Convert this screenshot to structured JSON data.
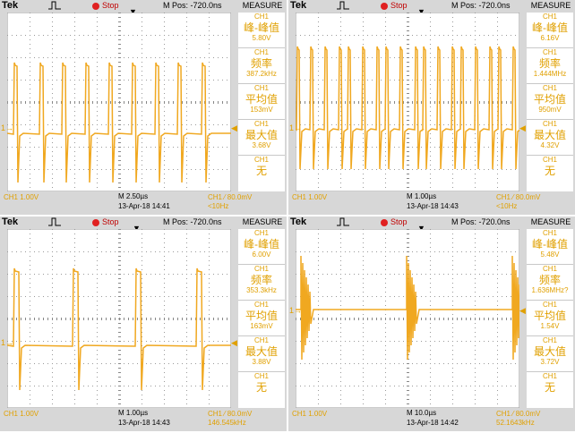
{
  "common": {
    "brand": "Tek",
    "status": "Stop",
    "mpos": "M Pos: -720.0ns",
    "measure_title": "MEASURE",
    "ch_label": "CH1",
    "ground_marker": "1→",
    "trace_color": "#f0a820",
    "label_color": "#e0a000"
  },
  "scopes": [
    {
      "id": "top-left",
      "ch_scale": "CH1  1.00V",
      "timebase": "M 2.50µs",
      "timestamp": "13-Apr-18 14:41",
      "trigger": "CH1 ⁄ 80.0mV",
      "trig_freq": "<10Hz",
      "measurements": [
        {
          "ch": "CH1",
          "label": "峰-峰值",
          "value": "5.80V"
        },
        {
          "ch": "CH1",
          "label": "频率",
          "value": "387.2kHz"
        },
        {
          "ch": "CH1",
          "label": "平均值",
          "value": "153mV"
        },
        {
          "ch": "CH1",
          "label": "最大值",
          "value": "3.68V"
        },
        {
          "ch": "CH1",
          "label": "无",
          "value": ""
        }
      ]
    },
    {
      "id": "top-right",
      "ch_scale": "CH1  1.00V",
      "timebase": "M 1.00µs",
      "timestamp": "13-Apr-18 14:43",
      "trigger": "CH1 ⁄ 80.0mV",
      "trig_freq": "<10Hz",
      "measurements": [
        {
          "ch": "CH1",
          "label": "峰-峰值",
          "value": "6.16V"
        },
        {
          "ch": "CH1",
          "label": "频率",
          "value": "1.444MHz"
        },
        {
          "ch": "CH1",
          "label": "平均值",
          "value": "950mV"
        },
        {
          "ch": "CH1",
          "label": "最大值",
          "value": "4.32V"
        },
        {
          "ch": "CH1",
          "label": "无",
          "value": ""
        }
      ]
    },
    {
      "id": "bottom-left",
      "ch_scale": "CH1  1.00V",
      "timebase": "M 1.00µs",
      "timestamp": "13-Apr-18 14:43",
      "trigger": "CH1 ⁄ 80.0mV",
      "trig_freq": "146.545kHz",
      "measurements": [
        {
          "ch": "CH1",
          "label": "峰-峰值",
          "value": "6.00V"
        },
        {
          "ch": "CH1",
          "label": "频率",
          "value": "353.3kHz"
        },
        {
          "ch": "CH1",
          "label": "平均值",
          "value": "163mV"
        },
        {
          "ch": "CH1",
          "label": "最大值",
          "value": "3.88V"
        },
        {
          "ch": "CH1",
          "label": "无",
          "value": ""
        }
      ]
    },
    {
      "id": "bottom-right",
      "ch_scale": "CH1  1.00V",
      "timebase": "M 10.0µs",
      "timestamp": "13-Apr-18 14:42",
      "trigger": "CH1 ⁄ 80.0mV",
      "trig_freq": "52.1643kHz",
      "measurements": [
        {
          "ch": "CH1",
          "label": "峰-峰值",
          "value": "5.48V"
        },
        {
          "ch": "CH1",
          "label": "频率",
          "value": "1.636MHz?"
        },
        {
          "ch": "CH1",
          "label": "平均值",
          "value": "1.54V"
        },
        {
          "ch": "CH1",
          "label": "最大值",
          "value": "3.72V"
        },
        {
          "ch": "CH1",
          "label": "无",
          "value": ""
        }
      ]
    }
  ]
}
